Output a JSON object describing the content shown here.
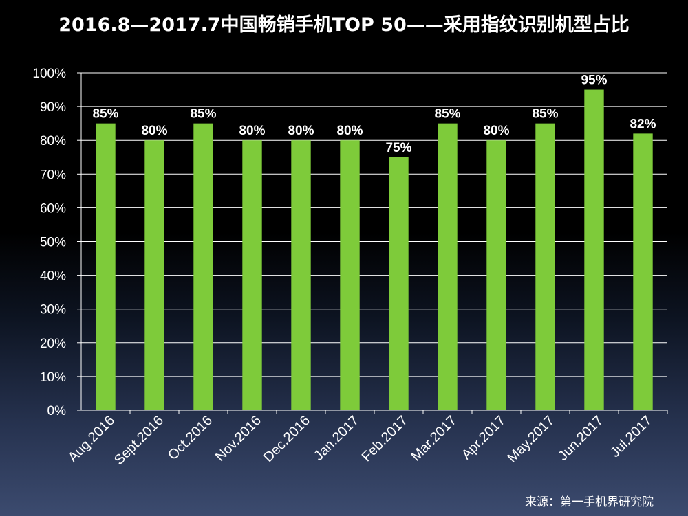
{
  "chart_data": {
    "type": "bar",
    "title": "2016.8—2017.7中国畅销手机TOP 50——采用指纹识别机型占比",
    "categories": [
      "Aug.2016",
      "Sept.2016",
      "Oct.2016",
      "Nov.2016",
      "Dec.2016",
      "Jan.2017",
      "Feb.2017",
      "Mar.2017",
      "Apr.2017",
      "May.2017",
      "Jun.2017",
      "Jul.2017"
    ],
    "values": [
      85,
      80,
      85,
      80,
      80,
      80,
      75,
      85,
      80,
      85,
      95,
      82
    ],
    "data_labels": [
      "85%",
      "80%",
      "85%",
      "80%",
      "80%",
      "80%",
      "75%",
      "85%",
      "80%",
      "85%",
      "95%",
      "82%"
    ],
    "y_ticks": [
      "0%",
      "10%",
      "20%",
      "30%",
      "40%",
      "50%",
      "60%",
      "70%",
      "80%",
      "90%",
      "100%"
    ],
    "ylim": [
      0,
      100
    ],
    "grid": true,
    "bar_color": "#7ecb3a",
    "grid_color": "#ffffff"
  },
  "source": "来源：第一手机界研究院"
}
